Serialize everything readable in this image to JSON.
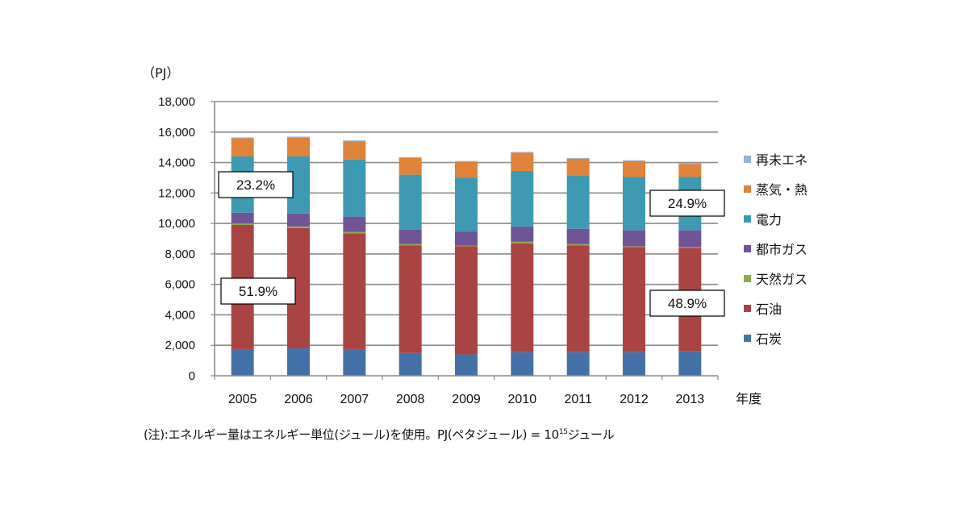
{
  "chart_data": {
    "type": "bar",
    "stacked": true,
    "title": "",
    "unit_label": "（PJ）",
    "xlabel": "年度",
    "ylabel": "（PJ）",
    "ylim": [
      0,
      18000
    ],
    "yticks": [
      0,
      2000,
      4000,
      6000,
      8000,
      10000,
      12000,
      14000,
      16000,
      18000
    ],
    "ytick_labels": [
      "0",
      "2,000",
      "4,000",
      "6,000",
      "8,000",
      "10,000",
      "12,000",
      "14,000",
      "16,000",
      "18,000"
    ],
    "grid": true,
    "legend_position": "right",
    "categories": [
      "2005",
      "2006",
      "2007",
      "2008",
      "2009",
      "2010",
      "2011",
      "2012",
      "2013"
    ],
    "series": [
      {
        "name": "石炭",
        "color": "#4472a8",
        "values": [
          1750,
          1800,
          1750,
          1500,
          1400,
          1550,
          1550,
          1550,
          1600
        ]
      },
      {
        "name": "石油",
        "color": "#a94442",
        "values": [
          8150,
          7900,
          7600,
          7050,
          7100,
          7150,
          7000,
          6900,
          6800
        ]
      },
      {
        "name": "天然ガス",
        "color": "#8faa4b",
        "values": [
          100,
          100,
          100,
          100,
          50,
          100,
          100,
          50,
          50
        ]
      },
      {
        "name": "都市ガス",
        "color": "#6f5497",
        "values": [
          700,
          850,
          1000,
          950,
          900,
          1000,
          1000,
          1050,
          1100
        ]
      },
      {
        "name": "電力",
        "color": "#3d9ab2",
        "values": [
          3700,
          3750,
          3750,
          3600,
          3550,
          3650,
          3500,
          3500,
          3500
        ]
      },
      {
        "name": "蒸気・熱",
        "color": "#e0823a",
        "values": [
          1200,
          1250,
          1200,
          1100,
          1050,
          1200,
          1100,
          1050,
          850
        ]
      },
      {
        "name": "再未エネ",
        "color": "#95b3d7",
        "values": [
          50,
          50,
          50,
          50,
          50,
          50,
          50,
          50,
          50
        ]
      }
    ],
    "annotations": [
      {
        "text": "23.2%",
        "category": "2005",
        "series": "電力"
      },
      {
        "text": "51.9%",
        "category": "2005",
        "series": "石油"
      },
      {
        "text": "24.9%",
        "category": "2013",
        "series": "電力"
      },
      {
        "text": "48.9%",
        "category": "2013",
        "series": "石油"
      }
    ]
  },
  "note": {
    "prefix": "(注):エネルギー量はエネルギー単位(ジュール)を使用。PJ(ペタジュール) = 10",
    "superscript": "15",
    "suffix": "ジュール"
  }
}
